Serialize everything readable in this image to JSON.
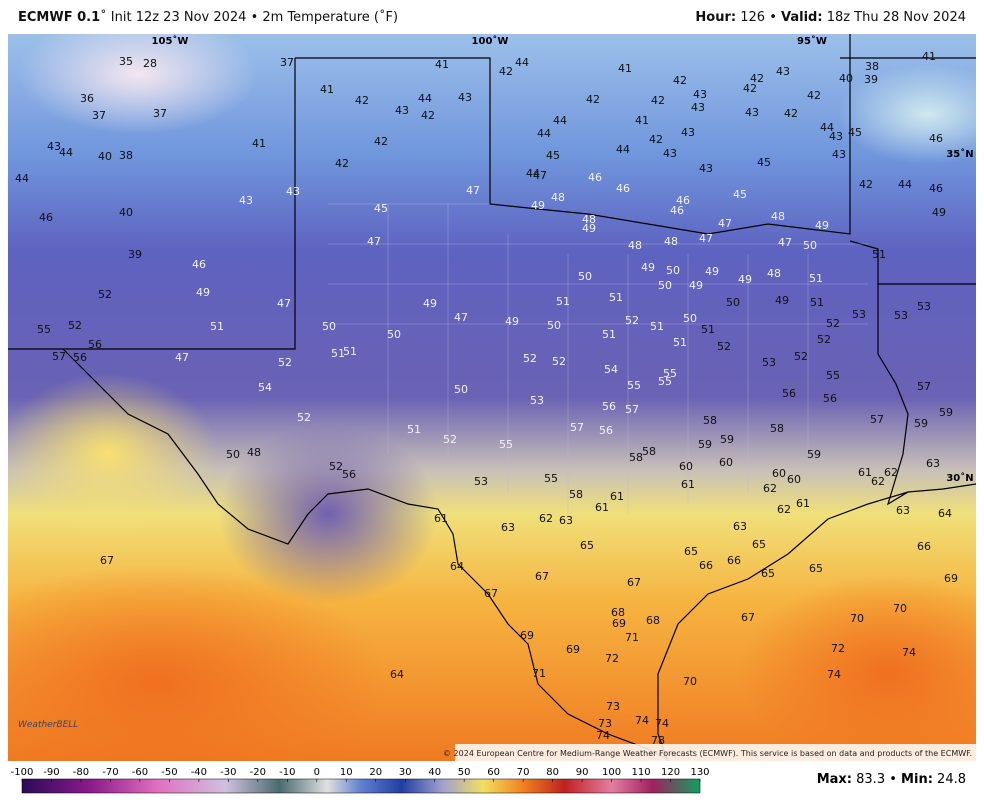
{
  "header": {
    "model": "ECMWF 0.1",
    "title": "˚ Init 12z 23 Nov 2024 • 2m Temperature (˚F)",
    "hour_key": "Hour:",
    "hour": "126",
    "sep": "•",
    "valid_key": "Valid:",
    "valid": "18z Thu 28 Nov 2024"
  },
  "map": {
    "grid_labels": [
      "105˚W",
      "100˚W",
      "95˚W",
      "35˚N",
      "30˚N"
    ],
    "rows": [
      [
        35,
        28,
        37,
        41,
        44,
        42,
        41,
        42,
        42,
        43,
        40,
        38,
        39,
        41
      ],
      [
        36,
        37,
        37,
        41,
        42,
        43,
        44,
        42,
        43,
        42,
        42,
        43,
        43,
        42,
        42,
        41,
        43,
        43,
        42,
        44,
        43,
        45,
        46
      ],
      [
        43,
        44,
        40,
        38,
        41,
        42,
        44,
        44,
        44,
        42,
        43,
        43,
        45,
        43
      ],
      [
        44,
        42,
        45,
        44,
        47,
        46,
        42,
        44,
        46
      ],
      [
        43,
        47,
        46,
        48,
        49,
        46,
        46,
        45
      ],
      [
        43,
        40,
        45,
        46,
        48,
        49,
        47,
        48,
        49,
        49
      ],
      [
        47,
        48,
        48,
        47,
        47,
        50,
        51
      ],
      [
        39,
        46,
        50,
        49,
        50,
        49,
        50,
        49,
        49,
        48,
        51
      ],
      [
        52,
        49,
        47,
        51,
        51,
        49,
        47,
        49,
        50,
        49,
        51,
        53
      ],
      [
        55,
        52,
        51,
        50,
        50,
        50,
        51,
        52,
        51,
        50,
        51,
        52,
        53,
        53
      ],
      [
        56,
        57,
        56,
        47,
        51,
        51,
        51,
        52,
        52,
        52
      ],
      [
        52,
        52,
        52,
        54,
        53,
        55,
        55,
        55,
        55,
        57
      ],
      [
        54,
        50,
        56,
        56,
        53,
        56,
        57,
        59
      ],
      [
        52,
        51,
        57,
        56,
        58,
        58,
        57,
        59
      ],
      [
        52,
        55,
        59,
        59,
        58,
        58,
        59,
        63
      ],
      [
        50,
        48,
        60,
        60,
        52,
        56,
        55,
        61,
        62,
        60,
        60,
        61,
        62
      ],
      [
        53,
        58,
        61,
        62,
        61,
        62,
        61
      ],
      [
        61,
        63,
        62,
        63,
        63,
        64,
        63
      ],
      [
        67,
        65,
        65,
        65,
        66,
        66,
        66,
        65,
        65
      ],
      [
        64,
        67,
        67,
        67,
        69
      ],
      [
        67,
        70,
        70,
        68,
        69,
        68,
        71
      ],
      [
        69,
        69,
        72,
        72,
        74
      ],
      [
        64,
        71,
        70,
        74
      ],
      [
        73,
        73,
        74,
        74,
        74,
        78
      ]
    ],
    "logo": "WeatherBELL",
    "copyright": "© 2024 European Centre for Medium-Range Weather Forecasts (ECMWF). This service is based on data and products of the ECMWF."
  },
  "colorbar": {
    "ticks": [
      -100,
      -90,
      -80,
      -70,
      -60,
      -50,
      -40,
      -30,
      -20,
      -10,
      0,
      10,
      20,
      30,
      40,
      50,
      60,
      70,
      80,
      90,
      100,
      110,
      120,
      130
    ]
  },
  "footer": {
    "max_key": "Max:",
    "max": "83.3",
    "sep": "•",
    "min_key": "Min:",
    "min": "24.8"
  }
}
